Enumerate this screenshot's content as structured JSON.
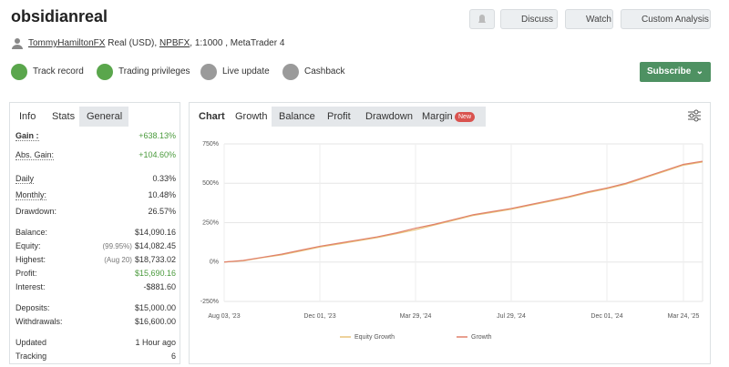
{
  "header": {
    "title": "obsidianreal",
    "buttons": [
      "Discuss",
      "Watch",
      "Custom Analysis"
    ],
    "owner": "TommyHamiltonFX",
    "account": "Real (USD),",
    "broker": "NPBFX",
    "details": ", 1:1000 , MetaTrader 4"
  },
  "badges": [
    "Track record",
    "Trading privileges",
    "Live update",
    "Cashback"
  ],
  "subscribe": "Subscribe",
  "info": {
    "tabs": [
      "Info",
      "Stats",
      "General"
    ],
    "rows": [
      {
        "label": "Gain :",
        "value": "+638.13%",
        "color": "#4a9a3c"
      },
      {
        "label": "Abs. Gain:",
        "value": "+104.60%",
        "color": "#4a9a3c"
      },
      {
        "label": "Daily",
        "value": "0.33%"
      },
      {
        "label": "Monthly:",
        "value": "10.48%"
      },
      {
        "label": "Drawdown:",
        "value": "26.57%"
      },
      {
        "label": "Balance:",
        "value": "$14,090.16"
      },
      {
        "label": "Equity:",
        "note": "(99.95%)",
        "value": "$14,082.45"
      },
      {
        "label": "Highest:",
        "note": "(Aug 20)",
        "value": "$18,733.02"
      },
      {
        "label": "Profit:",
        "value": "$15,690.16",
        "color": "#4a9a3c"
      },
      {
        "label": "Interest:",
        "value": "-$881.60"
      },
      {
        "label": "Deposits:",
        "value": "$15,000.00"
      },
      {
        "label": "Withdrawals:",
        "value": "$16,600.00"
      },
      {
        "label": "Updated",
        "value": "1 Hour ago"
      },
      {
        "label": "Tracking",
        "value": "6"
      }
    ]
  },
  "chart": {
    "type": "line",
    "tabs": [
      "Chart",
      "Growth",
      "Balance",
      "Profit",
      "Drawdown",
      "Margin"
    ],
    "new_badge": "New",
    "categories": [
      "Aug 03, '23",
      null,
      null,
      null,
      null,
      "Dec 01, '23",
      null,
      null,
      null,
      null,
      "Mar 29, '24",
      null,
      null,
      null,
      null,
      "Jul 29, '24",
      null,
      null,
      null,
      null,
      "Dec 01, '24",
      null,
      null,
      null,
      "Mar 24, '25",
      null
    ],
    "ylim": [
      -250,
      750
    ],
    "yticks": [
      {
        "value": -250,
        "label": "-250%"
      },
      {
        "value": 0,
        "label": "0%"
      },
      {
        "value": 250,
        "label": "250%"
      },
      {
        "value": 500,
        "label": "500%"
      },
      {
        "value": 750,
        "label": "750%"
      }
    ],
    "grid": true,
    "series": [
      {
        "name": "Equity Growth",
        "color": "#e8c27a",
        "values": [
          0,
          8,
          28,
          45,
          70,
          95,
          115,
          135,
          155,
          180,
          205,
          235,
          265,
          295,
          315,
          335,
          360,
          385,
          410,
          440,
          465,
          495,
          535,
          575,
          615,
          635
        ]
      },
      {
        "name": "Growth",
        "color": "#e0806a",
        "values": [
          0,
          10,
          30,
          50,
          75,
          100,
          120,
          140,
          160,
          185,
          215,
          240,
          270,
          300,
          320,
          340,
          365,
          390,
          415,
          445,
          470,
          500,
          540,
          580,
          620,
          640
        ]
      }
    ]
  }
}
